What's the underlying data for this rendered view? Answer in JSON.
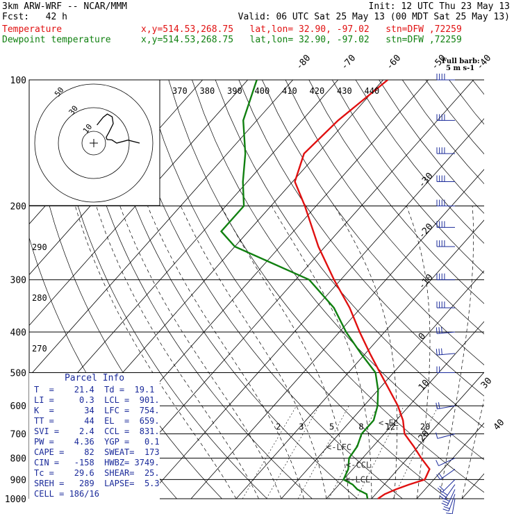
{
  "header": {
    "model": "3km ARW-WRF -- NCAR/MMM",
    "init": "Init: 12 UTC Thu 23 May 13",
    "fcst": "Fcst:   42 h",
    "valid": "Valid: 06 UTC Sat 25 May 13 (00 MDT Sat 25 May 13)",
    "temp_label": "Temperature",
    "temp_info": "x,y=514.53,268.75   lat,lon= 32.90, -97.02   stn=DFW ,72259",
    "dew_label": "Dewpoint temperature",
    "dew_info": "x,y=514.53,268.75   lat,lon= 32.90, -97.02   stn=DFW ,72259"
  },
  "barb_legend": {
    "line1": "Full barb:",
    "line2": "5 m s-1"
  },
  "colors": {
    "temperature": "#e01010",
    "dewpoint": "#108010",
    "parcel_text": "#1a2a9a",
    "barbs": "#1a2a9a"
  },
  "chart_data": {
    "type": "line",
    "skewt": true,
    "y_scale": "log",
    "pressure_levels_hpa": [
      100,
      200,
      300,
      400,
      500,
      600,
      700,
      800,
      900,
      1000
    ],
    "isotherm_labels_c": [
      -80,
      -70,
      -60,
      -50,
      -40,
      -30,
      -20,
      -10,
      0,
      10,
      20,
      30,
      40
    ],
    "mixing_ratio_labels": [
      "2",
      "3",
      "5",
      "8",
      "12",
      "20"
    ],
    "theta_labels_upper": [
      "370",
      "380",
      "390",
      "400",
      "410",
      "420",
      "430",
      "440"
    ],
    "theta_labels_left": [
      "290",
      "280",
      "270"
    ],
    "parcel_markers": [
      {
        "label": "<-EL",
        "p": 659
      },
      {
        "label": "<-LFC",
        "p": 754
      },
      {
        "label": "<-CCL",
        "p": 831
      },
      {
        "label": "<-LCL",
        "p": 901
      }
    ],
    "series": [
      {
        "name": "Temperature",
        "points": [
          [
            1000,
            21.4
          ],
          [
            975,
            22
          ],
          [
            950,
            23.5
          ],
          [
            925,
            25.5
          ],
          [
            900,
            28
          ],
          [
            850,
            27
          ],
          [
            800,
            23
          ],
          [
            750,
            19
          ],
          [
            700,
            14.5
          ],
          [
            650,
            11.5
          ],
          [
            600,
            7.5
          ],
          [
            550,
            2.5
          ],
          [
            500,
            -3
          ],
          [
            450,
            -9
          ],
          [
            400,
            -15.5
          ],
          [
            350,
            -22.5
          ],
          [
            300,
            -31.5
          ],
          [
            250,
            -41.5
          ],
          [
            200,
            -52.5
          ],
          [
            175,
            -59.5
          ],
          [
            150,
            -63
          ],
          [
            125,
            -62
          ],
          [
            100,
            -59
          ]
        ]
      },
      {
        "name": "Dewpoint temperature",
        "points": [
          [
            1000,
            19.1
          ],
          [
            975,
            18
          ],
          [
            950,
            15
          ],
          [
            925,
            13
          ],
          [
            900,
            10
          ],
          [
            850,
            9
          ],
          [
            800,
            7
          ],
          [
            750,
            6.5
          ],
          [
            700,
            5
          ],
          [
            650,
            5
          ],
          [
            600,
            3
          ],
          [
            550,
            0
          ],
          [
            500,
            -4
          ],
          [
            450,
            -11
          ],
          [
            400,
            -18.5
          ],
          [
            350,
            -26
          ],
          [
            300,
            -37
          ],
          [
            250,
            -60
          ],
          [
            230,
            -66
          ],
          [
            200,
            -66
          ],
          [
            175,
            -71
          ],
          [
            150,
            -76
          ],
          [
            125,
            -83
          ],
          [
            100,
            -88
          ]
        ]
      }
    ],
    "hodograph": {
      "rings_kt": [
        "10",
        "30",
        "50"
      ],
      "ring_values": [
        10,
        30,
        50
      ]
    },
    "wind_barbs": [
      {
        "p": 1000,
        "dir": 190,
        "spd_ms": 8
      },
      {
        "p": 975,
        "dir": 200,
        "spd_ms": 12
      },
      {
        "p": 950,
        "dir": 205,
        "spd_ms": 14
      },
      {
        "p": 925,
        "dir": 215,
        "spd_ms": 14
      },
      {
        "p": 900,
        "dir": 225,
        "spd_ms": 12
      },
      {
        "p": 850,
        "dir": 235,
        "spd_ms": 8
      },
      {
        "p": 800,
        "dir": 245,
        "spd_ms": 6
      },
      {
        "p": 700,
        "dir": 255,
        "spd_ms": 6
      },
      {
        "p": 600,
        "dir": 260,
        "spd_ms": 8
      },
      {
        "p": 500,
        "dir": 270,
        "spd_ms": 10
      },
      {
        "p": 450,
        "dir": 265,
        "spd_ms": 15
      },
      {
        "p": 400,
        "dir": 265,
        "spd_ms": 15
      },
      {
        "p": 350,
        "dir": 270,
        "spd_ms": 20
      },
      {
        "p": 300,
        "dir": 270,
        "spd_ms": 20
      },
      {
        "p": 250,
        "dir": 270,
        "spd_ms": 20
      },
      {
        "p": 225,
        "dir": 270,
        "spd_ms": 20
      },
      {
        "p": 200,
        "dir": 270,
        "spd_ms": 20
      },
      {
        "p": 175,
        "dir": 270,
        "spd_ms": 20
      },
      {
        "p": 150,
        "dir": 270,
        "spd_ms": 20
      },
      {
        "p": 125,
        "dir": 270,
        "spd_ms": 20
      },
      {
        "p": 100,
        "dir": 270,
        "spd_ms": 20
      }
    ]
  },
  "parcel_info": {
    "title": "Parcel Info",
    "rows": [
      "T  =    21.4  Td =  19.1",
      "LI =     0.3  LCL =  901.",
      "K  =      34  LFC =  754.",
      "TT =      44  EL  =  659.",
      "SVI =    2.4  CCL =  831.",
      "PW =    4.36  YGP =   0.1",
      "CAPE =    82  SWEAT=  173",
      "CIN =   -158  HWBZ= 3749.",
      "Tc =    29.6  SHEAR=  25.",
      "SREH =   289  LAPSE=  5.3",
      "CELL = 186/16"
    ]
  }
}
